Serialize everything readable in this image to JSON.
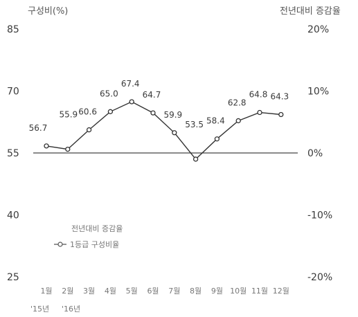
{
  "chart_data": {
    "type": "line",
    "left_axis_title": "구성비(%)",
    "right_axis_title": "전년대비 증감율",
    "left_ticks": [
      85,
      70,
      55,
      40,
      25
    ],
    "right_ticks": [
      "20%",
      "10%",
      "0%",
      "-10%",
      "-20%"
    ],
    "ylim": [
      25,
      85
    ],
    "categories": [
      "1월",
      "2월",
      "3월",
      "4월",
      "5월",
      "6월",
      "7월",
      "8월",
      "9월",
      "10월",
      "11월",
      "12월"
    ],
    "year_labels": [
      "'15년",
      "'16년"
    ],
    "series": [
      {
        "name": "1등급 구성비율",
        "x_index": [
          0,
          1,
          2,
          3,
          4,
          5,
          6,
          7,
          8,
          9,
          10,
          11
        ],
        "values": [
          56.7,
          55.9,
          60.6,
          65.0,
          67.4,
          64.7,
          59.9,
          53.5,
          58.4,
          62.8,
          64.8,
          64.3
        ],
        "labels": [
          "56.7",
          "55.9",
          "60.6",
          "65.0",
          "67.4",
          "64.7",
          "59.9",
          "53.5",
          "58.4",
          "62.8",
          "64.8",
          "64.3"
        ]
      }
    ],
    "legend": {
      "title": "전년대비 증감율",
      "entry": "1등급 구성비율",
      "position": "bottom-left"
    },
    "baseline_value": 55
  }
}
